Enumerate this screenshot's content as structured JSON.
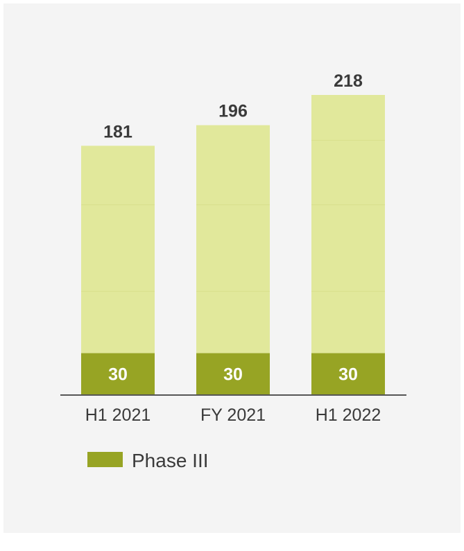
{
  "chart_data": {
    "type": "bar",
    "stacked": true,
    "categories": [
      "H1 2021",
      "FY 2021",
      "H1 2022"
    ],
    "series": [
      {
        "name": "Phase III",
        "values": [
          30,
          30,
          30
        ],
        "color": "#97a424"
      },
      {
        "values": [
          151,
          166,
          188
        ],
        "color": "#e1e89b"
      }
    ],
    "totals": [
      181,
      196,
      218
    ],
    "segment_boundaries": [
      [
        45,
        108
      ],
      [
        45,
        108
      ],
      [
        45,
        108,
        155
      ]
    ],
    "ylim": [
      0,
      240
    ],
    "grid": false,
    "legend": {
      "position": "bottom-left"
    }
  }
}
